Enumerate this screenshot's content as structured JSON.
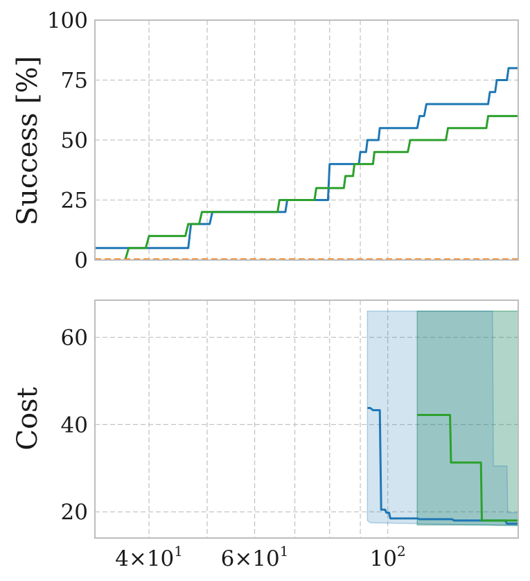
{
  "chart_data": [
    {
      "type": "line",
      "title": "",
      "xlabel": "",
      "ylabel": "Success [%]",
      "xscale": "log",
      "xlim": [
        32.5,
        165
      ],
      "ylim": [
        0,
        100
      ],
      "yticks": [
        "0",
        "25",
        "50",
        "75",
        "100"
      ],
      "grid": "dashed",
      "series": [
        {
          "color": "#1f77b4",
          "points": [
            [
              32.5,
              5
            ],
            [
              46.5,
              5
            ],
            [
              47.0,
              15
            ],
            [
              50.5,
              15
            ],
            [
              51.0,
              20
            ],
            [
              67.5,
              20
            ],
            [
              68.0,
              25
            ],
            [
              79.5,
              25
            ],
            [
              80.0,
              40
            ],
            [
              89.5,
              40
            ],
            [
              90.0,
              45
            ],
            [
              92.0,
              45
            ],
            [
              92.5,
              50
            ],
            [
              96.5,
              50
            ],
            [
              97.0,
              55
            ],
            [
              112,
              55
            ],
            [
              113,
              60
            ],
            [
              115,
              60
            ],
            [
              116,
              65
            ],
            [
              147,
              65
            ],
            [
              148,
              70
            ],
            [
              151,
              70
            ],
            [
              152,
              75
            ],
            [
              158,
              75
            ],
            [
              159,
              80
            ],
            [
              165,
              80
            ]
          ]
        },
        {
          "color": "#2ca02c",
          "points": [
            [
              36.5,
              0
            ],
            [
              37.0,
              5
            ],
            [
              39.5,
              5
            ],
            [
              40.0,
              10
            ],
            [
              46.0,
              10
            ],
            [
              46.5,
              15
            ],
            [
              48.5,
              15
            ],
            [
              49.0,
              20
            ],
            [
              65.5,
              20
            ],
            [
              66.0,
              25
            ],
            [
              75.5,
              25
            ],
            [
              76.0,
              30
            ],
            [
              84.5,
              30
            ],
            [
              85.0,
              35
            ],
            [
              87.5,
              35
            ],
            [
              88.0,
              40
            ],
            [
              94.5,
              40
            ],
            [
              95.0,
              45
            ],
            [
              108,
              45
            ],
            [
              109,
              50
            ],
            [
              125,
              50
            ],
            [
              126,
              55
            ],
            [
              146,
              55
            ],
            [
              147,
              60
            ],
            [
              165,
              60
            ]
          ]
        },
        {
          "color": "#ff7f0e",
          "points": [
            [
              32.5,
              0.4
            ],
            [
              165,
              0.4
            ]
          ]
        }
      ]
    },
    {
      "type": "line",
      "title": "",
      "xlabel": "",
      "ylabel": "Cost",
      "xscale": "log",
      "xlim": [
        32.5,
        165
      ],
      "ylim": [
        14,
        68.5
      ],
      "xticks": [
        {
          "value": 40,
          "base": "4×10",
          "exp": "1"
        },
        {
          "value": 60,
          "base": "6×10",
          "exp": "1"
        },
        {
          "value": 100,
          "base": "10",
          "exp": "2"
        }
      ],
      "yticks": [
        "20",
        "40",
        "60"
      ],
      "grid": "dashed",
      "series": [
        {
          "color": "#1f77b4",
          "points": [
            [
              92.5,
              43.8
            ],
            [
              93.5,
              43.8
            ],
            [
              94.5,
              43.3
            ],
            [
              97.0,
              43.3
            ],
            [
              97.5,
              20.5
            ],
            [
              99.0,
              20.5
            ],
            [
              99.5,
              19.8
            ],
            [
              100.5,
              19.8
            ],
            [
              101.0,
              18.5
            ],
            [
              112,
              18.5
            ],
            [
              113,
              18.3
            ],
            [
              128,
              18.3
            ],
            [
              129,
              18.0
            ],
            [
              157,
              18.0
            ],
            [
              158,
              17.3
            ],
            [
              165,
              17.3
            ]
          ],
          "band": [
            [
              92.5,
              66,
              18
            ],
            [
              93.5,
              66,
              17.5
            ],
            [
              112,
              66,
              17.3
            ],
            [
              165,
              66,
              16.8
            ]
          ]
        },
        {
          "color": "#2ca02c",
          "points": [
            [
              112,
              42.2
            ],
            [
              127,
              42.2
            ],
            [
              127.5,
              31.3
            ],
            [
              143,
              31.3
            ],
            [
              143.5,
              18.0
            ],
            [
              165,
              18.0
            ]
          ],
          "band": [
            [
              112,
              66,
              17.0
            ],
            [
              149,
              66,
              17.0
            ],
            [
              150,
              66,
              16.9
            ],
            [
              165,
              66,
              16.9
            ]
          ]
        },
        {
          "color": "#1f77b4",
          "points": [],
          "band": [
            [
              112,
              66,
              17.0
            ],
            [
              149.5,
              66,
              17.0
            ],
            [
              150,
              30.5,
              17.0
            ],
            [
              158,
              30.5,
              17.0
            ],
            [
              158.5,
              19.8,
              17.0
            ],
            [
              165,
              19.8,
              17.0
            ]
          ]
        }
      ]
    }
  ]
}
